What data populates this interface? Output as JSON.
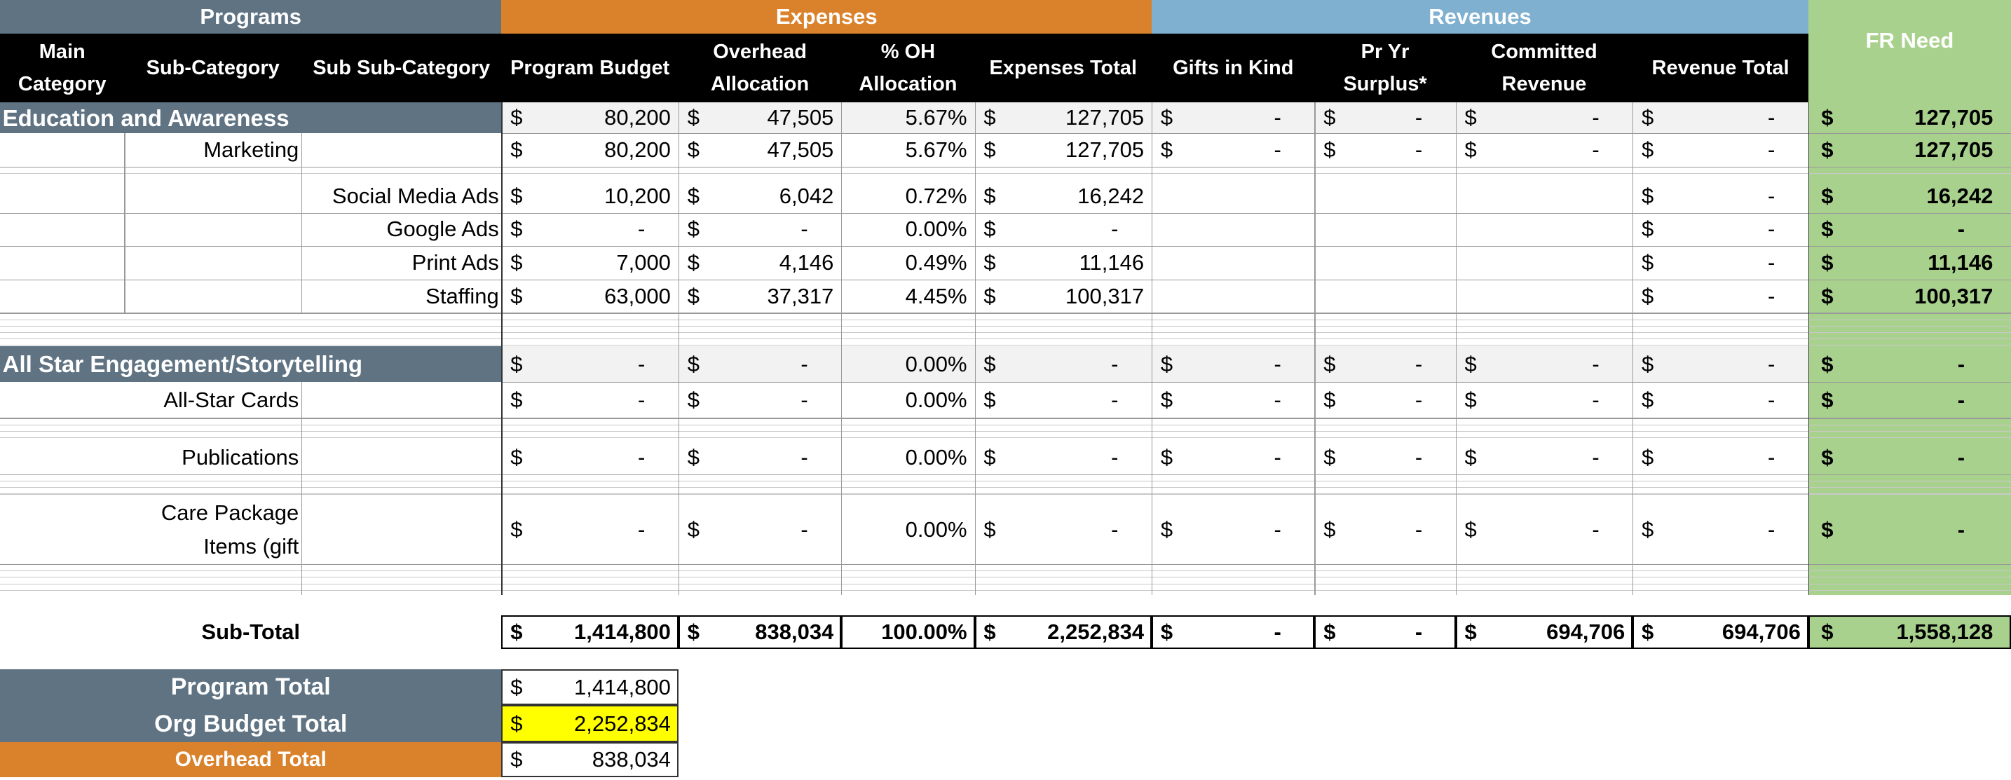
{
  "groups": [
    "Programs",
    "Expenses",
    "Revenues"
  ],
  "fr_need_header": "FR Need",
  "columns": [
    "Main Category",
    "Sub-Category",
    "Sub Sub-Category",
    "Program Budget",
    "Overhead Allocation",
    "% OH Allocation",
    "Expenses Total",
    "Gifts in Kind",
    "Pr Yr Surplus*",
    "Committed Revenue",
    "Revenue Total"
  ],
  "currency": "$",
  "rows": [
    {
      "category": "Education and Awareness",
      "values": [
        "80,200",
        "47,505",
        "5.67%",
        "127,705",
        "-",
        "-",
        "-",
        "-"
      ],
      "fr_need": "127,705"
    },
    {
      "sub_category": "Marketing",
      "values": [
        "80,200",
        "47,505",
        "5.67%",
        "127,705",
        "-",
        "-",
        "-",
        "-"
      ],
      "fr_need": "127,705"
    },
    {
      "sub_sub_category": "Social Media Ads",
      "values": [
        "10,200",
        "6,042",
        "0.72%",
        "16,242",
        null,
        null,
        null,
        "-"
      ],
      "fr_need": "16,242"
    },
    {
      "sub_sub_category": "Google Ads",
      "values": [
        "-",
        "-",
        "0.00%",
        "-",
        null,
        null,
        null,
        "-"
      ],
      "fr_need": "-"
    },
    {
      "sub_sub_category": "Print Ads",
      "values": [
        "7,000",
        "4,146",
        "0.49%",
        "11,146",
        null,
        null,
        null,
        "-"
      ],
      "fr_need": "11,146"
    },
    {
      "sub_sub_category": "Staffing",
      "values": [
        "63,000",
        "37,317",
        "4.45%",
        "100,317",
        null,
        null,
        null,
        "-"
      ],
      "fr_need": "100,317"
    },
    {
      "category": "All Star Engagement/Storytelling",
      "values": [
        "-",
        "-",
        "0.00%",
        "-",
        "-",
        "-",
        "-",
        "-"
      ],
      "fr_need": "-"
    },
    {
      "sub_category": "All-Star Cards",
      "values": [
        "-",
        "-",
        "0.00%",
        "-",
        "-",
        "-",
        "-",
        "-"
      ],
      "fr_need": "-"
    },
    {
      "sub_category": "Publications",
      "values": [
        "-",
        "-",
        "0.00%",
        "-",
        "-",
        "-",
        "-",
        "-"
      ],
      "fr_need": "-"
    },
    {
      "sub_category": "Care Package Items (gift",
      "values": [
        "-",
        "-",
        "0.00%",
        "-",
        "-",
        "-",
        "-",
        "-"
      ],
      "fr_need": "-"
    }
  ],
  "subtotal": {
    "label": "Sub-Total",
    "values": [
      "1,414,800",
      "838,034",
      "100.00%",
      "2,252,834",
      "-",
      "-",
      "694,706",
      "694,706"
    ],
    "fr_need": "1,558,128"
  },
  "summary": [
    {
      "label": "Program Total",
      "value": "1,414,800"
    },
    {
      "label": "Org Budget Total",
      "value": "2,252,834"
    },
    {
      "label": "Overhead Total",
      "value": "838,034"
    }
  ]
}
